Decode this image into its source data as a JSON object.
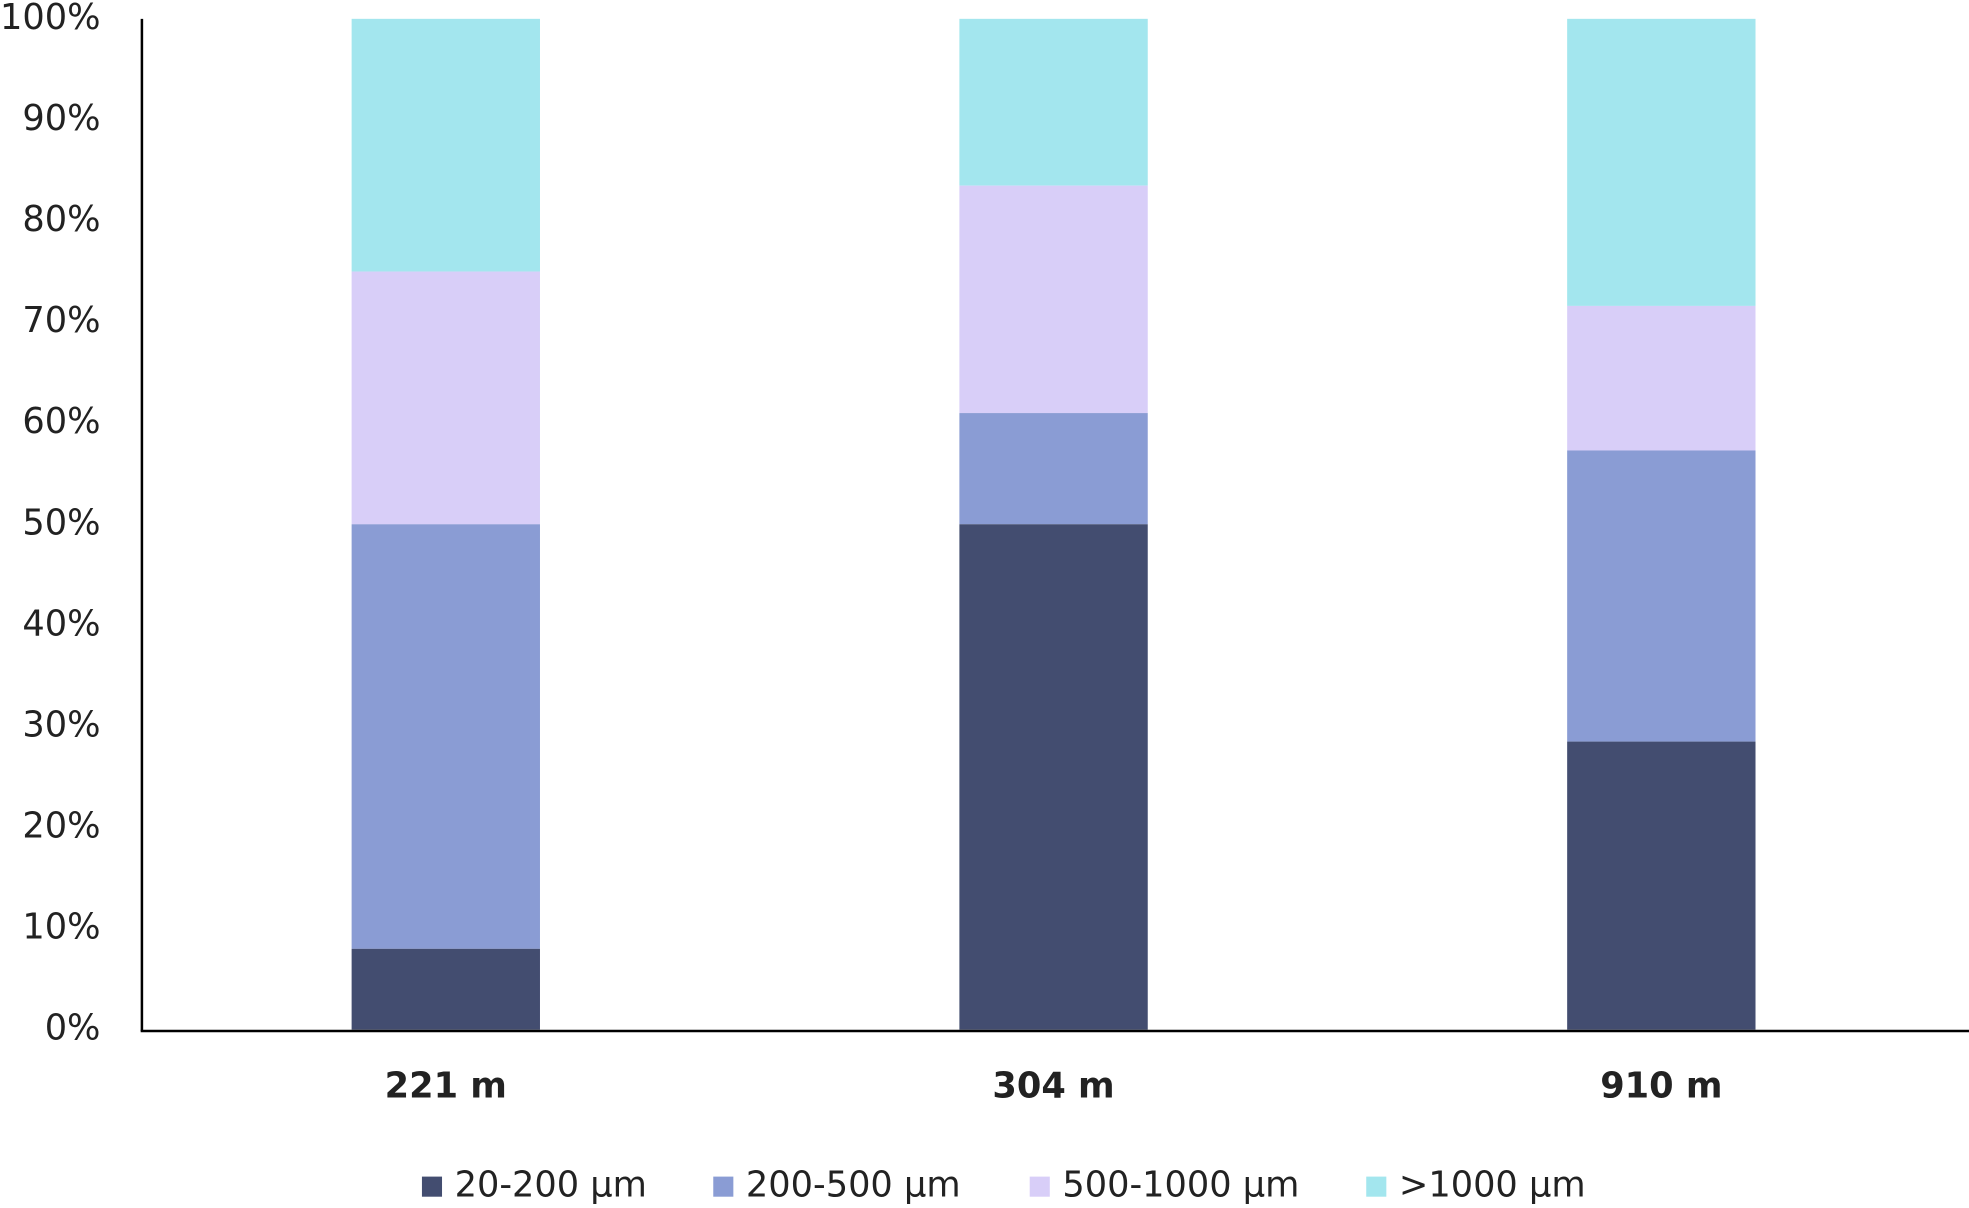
{
  "chart_data": {
    "type": "stacked_bar",
    "categories": [
      "221 m",
      "304 m",
      "910 m"
    ],
    "series": [
      {
        "name": "20-200 µm",
        "color": "#434d70",
        "values": [
          8,
          50,
          28.5
        ]
      },
      {
        "name": "200-500 µm",
        "color": "#8a9cd4",
        "values": [
          42,
          11,
          28.8
        ]
      },
      {
        "name": "500-1000 µm",
        "color": "#d8cef8",
        "values": [
          25,
          22.5,
          14.3
        ]
      },
      {
        "name": ">1000 µm",
        "color": "#a3e6ee",
        "values": [
          25,
          16.5,
          28.4
        ]
      }
    ],
    "ylim": [
      0,
      100
    ],
    "yticks": [
      {
        "value": 0,
        "label": "0%"
      },
      {
        "value": 10,
        "label": "10%"
      },
      {
        "value": 20,
        "label": "20%"
      },
      {
        "value": 30,
        "label": "30%"
      },
      {
        "value": 40,
        "label": "40%"
      },
      {
        "value": 50,
        "label": "50%"
      },
      {
        "value": 60,
        "label": "60%"
      },
      {
        "value": 70,
        "label": "70%"
      },
      {
        "value": 80,
        "label": "80%"
      },
      {
        "value": 90,
        "label": "90%"
      },
      {
        "value": 100,
        "label": "100%"
      }
    ],
    "grid": false,
    "legend": "bottom"
  }
}
